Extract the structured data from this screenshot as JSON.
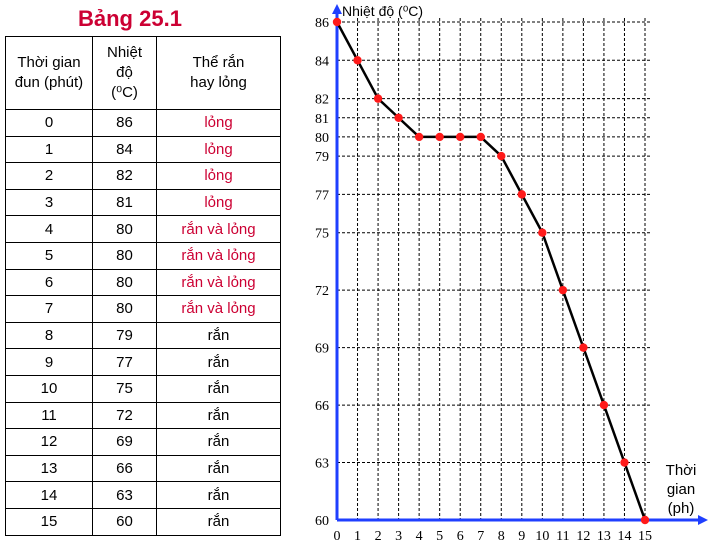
{
  "page_title": "Bảng 25.1",
  "table": {
    "headers": [
      "Thời gian đun (phút)",
      "Nhiệt độ (⁰C)",
      "Thể rắn hay lỏng"
    ],
    "header_lines": [
      [
        "Thời gian",
        "đun (phút)"
      ],
      [
        "Nhiệt",
        "độ",
        "(⁰C)"
      ],
      [
        "Thể rắn",
        "hay lỏng"
      ]
    ],
    "rows": [
      {
        "t": "0",
        "temp": "86",
        "state": "lỏng"
      },
      {
        "t": "1",
        "temp": "84",
        "state": "lỏng"
      },
      {
        "t": "2",
        "temp": "82",
        "state": "lỏng"
      },
      {
        "t": "3",
        "temp": "81",
        "state": "lỏng"
      },
      {
        "t": "4",
        "temp": "80",
        "state": "rắn và lỏng"
      },
      {
        "t": "5",
        "temp": "80",
        "state": "rắn và lỏng"
      },
      {
        "t": "6",
        "temp": "80",
        "state": "rắn và lỏng"
      },
      {
        "t": "7",
        "temp": "80",
        "state": "rắn và lỏng"
      },
      {
        "t": "8",
        "temp": "79",
        "state": "rắn"
      },
      {
        "t": "9",
        "temp": "77",
        "state": "rắn"
      },
      {
        "t": "10",
        "temp": "75",
        "state": "rắn"
      },
      {
        "t": "11",
        "temp": "72",
        "state": "rắn"
      },
      {
        "t": "12",
        "temp": "69",
        "state": "rắn"
      },
      {
        "t": "13",
        "temp": "66",
        "state": "rắn"
      },
      {
        "t": "14",
        "temp": "63",
        "state": "rắn"
      },
      {
        "t": "15",
        "temp": "60",
        "state": "rắn"
      }
    ]
  },
  "chart_data": {
    "type": "line",
    "title": "",
    "ylabel": "Nhiệt độ (⁰C)",
    "xlabel": "Thời gian (ph)",
    "xlabel_lines": [
      "Thời",
      "gian",
      "(ph)"
    ],
    "x": [
      0,
      1,
      2,
      3,
      4,
      5,
      6,
      7,
      8,
      9,
      10,
      11,
      12,
      13,
      14,
      15
    ],
    "y": [
      86,
      84,
      82,
      81,
      80,
      80,
      80,
      80,
      79,
      77,
      75,
      72,
      69,
      66,
      63,
      60
    ],
    "xlim": [
      0,
      15
    ],
    "ylim": [
      60,
      86
    ],
    "x_ticks": [
      "0",
      "1",
      "2",
      "3",
      "4",
      "5",
      "6",
      "7",
      "8",
      "9",
      "10",
      "11",
      "12",
      "13",
      "14",
      "15"
    ],
    "y_ticks": [
      86,
      84,
      82,
      81,
      80,
      79,
      77,
      75,
      72,
      69,
      66,
      63,
      60
    ],
    "grid": true,
    "colors": {
      "axis": "#1f3fff",
      "line": "#000000",
      "marker": "#ff1a1a",
      "title": "#cc0033"
    }
  }
}
